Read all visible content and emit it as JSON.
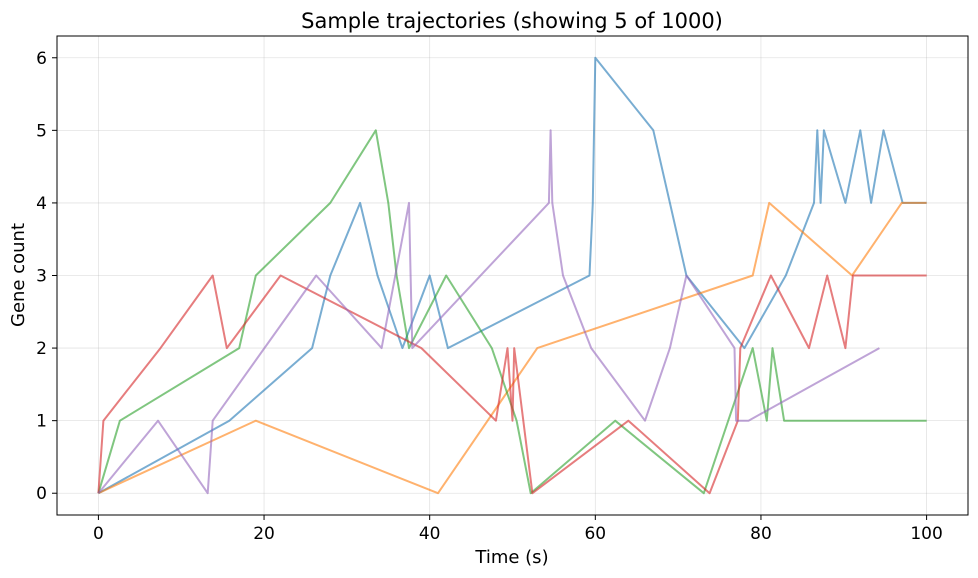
{
  "chart_data": {
    "type": "line",
    "title": "Sample trajectories (showing 5 of 1000)",
    "xlabel": "Time (s)",
    "ylabel": "Gene count",
    "xlim": [
      -5,
      105
    ],
    "ylim": [
      -0.3,
      6.3
    ],
    "xticks": [
      0,
      20,
      40,
      60,
      80,
      100
    ],
    "yticks": [
      0,
      1,
      2,
      3,
      4,
      5,
      6
    ],
    "grid": true,
    "series": [
      {
        "color": "#1f77b4",
        "x": [
          0,
          15.8,
          25.8,
          28,
          31.6,
          33.7,
          36.7,
          40,
          42.2,
          59.3,
          59.7,
          60,
          67,
          69,
          71,
          78,
          83,
          86.4,
          86.8,
          87.2,
          87.6,
          90.2,
          92,
          93.3,
          94.8,
          97.1,
          100
        ],
        "y": [
          0,
          1,
          2,
          3,
          4,
          3,
          2,
          3,
          2,
          3,
          4,
          6,
          5,
          4,
          3,
          2,
          3,
          4,
          5,
          4,
          5,
          4,
          5,
          4,
          5,
          4,
          4
        ]
      },
      {
        "color": "#ff7f0e",
        "x": [
          0,
          19,
          41,
          53,
          79,
          81,
          91,
          97,
          100
        ],
        "y": [
          0,
          1,
          0,
          2,
          3,
          4,
          3,
          4,
          4
        ]
      },
      {
        "color": "#2ca02c",
        "x": [
          0,
          2.6,
          17,
          19,
          28,
          33.5,
          35,
          36,
          37.5,
          42,
          47.5,
          50.5,
          52.2,
          62.4,
          73.1,
          79,
          80.7,
          81.4,
          82.8,
          100
        ],
        "y": [
          0,
          1,
          2,
          3,
          4,
          5,
          4,
          3,
          2,
          3,
          2,
          1,
          0,
          1,
          0,
          2,
          1,
          2,
          1,
          1
        ]
      },
      {
        "color": "#d62728",
        "x": [
          0,
          0.6,
          7.5,
          13.8,
          15.5,
          22,
          39,
          48,
          49.4,
          50,
          50.2,
          52.4,
          64,
          73.8,
          77.2,
          77.5,
          81.2,
          85.8,
          88,
          90.2,
          91.1,
          100
        ],
        "y": [
          0,
          1,
          2,
          3,
          2,
          3,
          2,
          1,
          2,
          1,
          2,
          0,
          1,
          0,
          1,
          2,
          3,
          2,
          3,
          2,
          3,
          3
        ]
      },
      {
        "color": "#9467bd",
        "x": [
          0,
          7.2,
          13.2,
          13.8,
          26.3,
          34.2,
          37.5,
          37.7,
          37.9,
          54.4,
          54.6,
          54.8,
          56.1,
          59.5,
          66,
          69,
          71,
          76.8,
          77,
          78.5,
          94.3
        ],
        "y": [
          0,
          1,
          0,
          1,
          3,
          2,
          4,
          3,
          2,
          4,
          5,
          4,
          3,
          2,
          1,
          2,
          3,
          2,
          1,
          1,
          2
        ]
      }
    ]
  }
}
